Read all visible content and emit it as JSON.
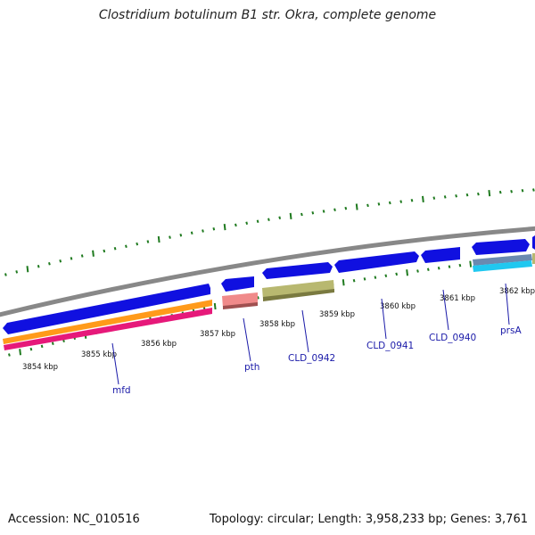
{
  "title": "Clostridium botulinum B1 str. Okra, complete genome",
  "footer": {
    "accession": "Accession: NC_010516",
    "summary": "Topology: circular; Length: 3,958,233 bp; Genes: 3,761"
  },
  "colors": {
    "backbone": "#8a8a8a",
    "cds": "#1010e0",
    "tick": "#1f7a1f",
    "label_line": "#1a1aa8",
    "orange": "#ff9a1a",
    "magenta": "#e6197a",
    "pink": "#f08a8a",
    "olive": "#b8b870",
    "steel": "#6a8ab0",
    "cyan": "#20c8f0"
  },
  "kbp_labels": [
    "3854 kbp",
    "3855 kbp",
    "3856 kbp",
    "3857 kbp",
    "3858 kbp",
    "3859 kbp",
    "3860 kbp",
    "3861 kbp",
    "3862 kbp"
  ],
  "gene_labels": [
    "mfd",
    "pth",
    "CLD_0942",
    "CLD_0941",
    "CLD_0940",
    "prsA"
  ]
}
